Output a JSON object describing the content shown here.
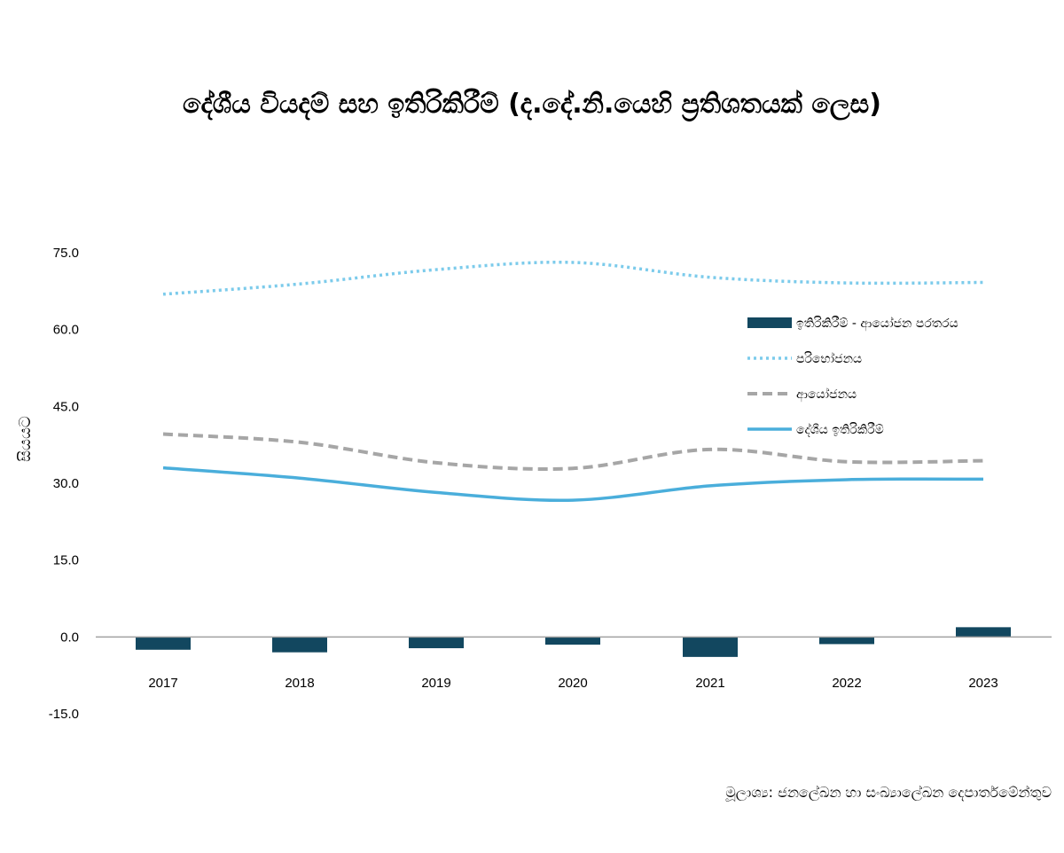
{
  "chart_data": {
    "type": "line",
    "title": "දේශීය වියදම් සහ ඉතිරිකිරීම් (ද.දේ.නි.යෙහි ප්‍රතිශතයක් ලෙස)",
    "ylabel": "සියයට",
    "xlabel": "",
    "categories": [
      "2017",
      "2018",
      "2019",
      "2020",
      "2021",
      "2022",
      "2023"
    ],
    "ylim": [
      -15,
      75
    ],
    "yticks": [
      "75.0",
      "60.0",
      "45.0",
      "30.0",
      "15.0",
      "0.0",
      "-15.0"
    ],
    "grid": false,
    "legend_position": "right",
    "series": [
      {
        "name": "ඉතිරිකිරීම් - ආයෝජන පරතරය",
        "kind": "bar",
        "color": "#12475f",
        "values": [
          -2.5,
          -3.0,
          -2.2,
          -1.5,
          -3.9,
          -1.4,
          1.9
        ]
      },
      {
        "name": "පරිභෝජනය",
        "kind": "dotted-line",
        "color": "#7ccbeb",
        "values": [
          66.9,
          68.9,
          71.7,
          73.1,
          70.2,
          69.1,
          69.2
        ]
      },
      {
        "name": "ආයෝජනය",
        "kind": "dashed-line",
        "color": "#a6a6a6",
        "values": [
          39.6,
          38.0,
          34.0,
          32.9,
          36.6,
          34.2,
          34.4
        ]
      },
      {
        "name": "දේශීය ඉතිරිකිරීම්",
        "kind": "solid-line",
        "color": "#4aaedb",
        "values": [
          33.0,
          31.0,
          28.2,
          26.7,
          29.5,
          30.7,
          30.8
        ]
      }
    ],
    "source": "මූලාශ්‍ය: ජනලේඛන හා සංඛ්‍යාලේඛන දෙපාර්තමේන්තුව"
  }
}
